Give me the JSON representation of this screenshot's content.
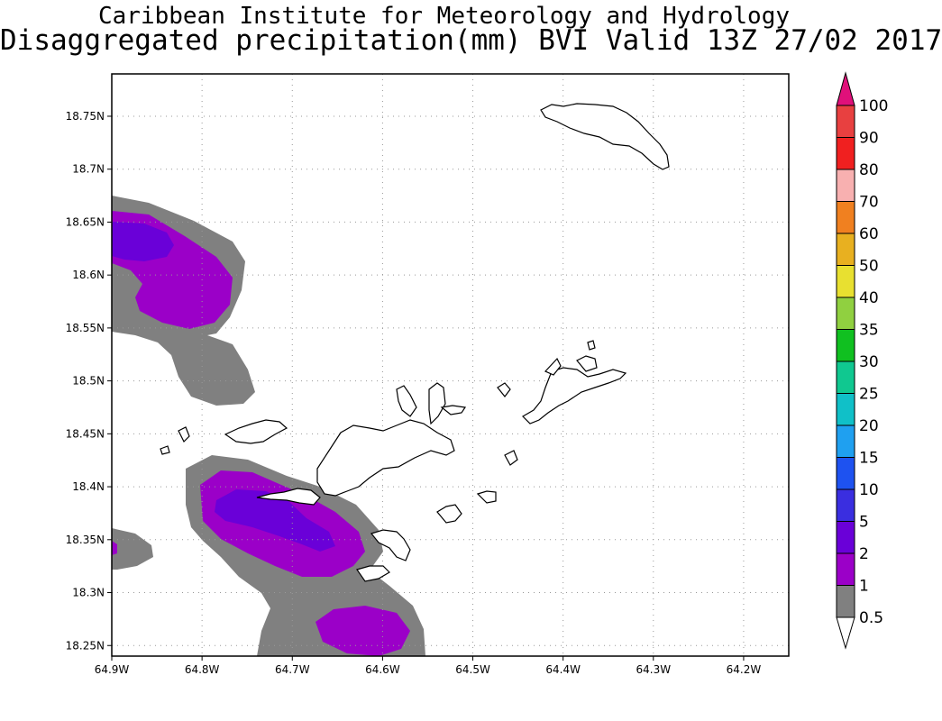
{
  "title": {
    "line1": "Caribbean Institute for Meteorology and Hydrology",
    "line2": "Disaggregated precipitation(mm) BVI Valid 13Z 27/02 2017"
  },
  "map": {
    "lon_range": [
      -64.9,
      -64.15
    ],
    "lat_range": [
      18.24,
      18.79
    ],
    "lat_ticks": [
      18.25,
      18.3,
      18.35,
      18.4,
      18.45,
      18.5,
      18.55,
      18.6,
      18.65,
      18.7,
      18.75
    ],
    "lon_ticks": [
      -64.9,
      -64.8,
      -64.7,
      -64.6,
      -64.5,
      -64.4,
      -64.3,
      -64.2
    ],
    "lat_labels": [
      "18.25N",
      "18.3N",
      "18.35N",
      "18.4N",
      "18.45N",
      "18.5N",
      "18.55N",
      "18.6N",
      "18.65N",
      "18.7N",
      "18.75N"
    ],
    "lon_labels": [
      "64.9W",
      "64.8W",
      "64.7W",
      "64.6W",
      "64.5W",
      "64.4W",
      "64.3W",
      "64.2W"
    ],
    "grid": "dotted"
  },
  "colorbar": {
    "levels": [
      "0.5",
      "1",
      "2",
      "5",
      "10",
      "15",
      "20",
      "25",
      "30",
      "35",
      "40",
      "50",
      "60",
      "70",
      "80",
      "90",
      "100"
    ],
    "colors": [
      "#ffffff",
      "#808080",
      "#9b00c8",
      "#6a00d8",
      "#3a2ee0",
      "#1e52f0",
      "#1fa0f0",
      "#10c0c8",
      "#10c890",
      "#10c020",
      "#90d040",
      "#e8e030",
      "#e8b020",
      "#f08020",
      "#f8b0b0",
      "#f02020",
      "#e84040",
      "#e0107a"
    ]
  },
  "precip_areas": [
    {
      "level": "0.5-1",
      "color": "#808080"
    },
    {
      "level": "1-2",
      "color": "#9b00c8"
    },
    {
      "level": "2-5",
      "color": "#6a00d8"
    }
  ]
}
